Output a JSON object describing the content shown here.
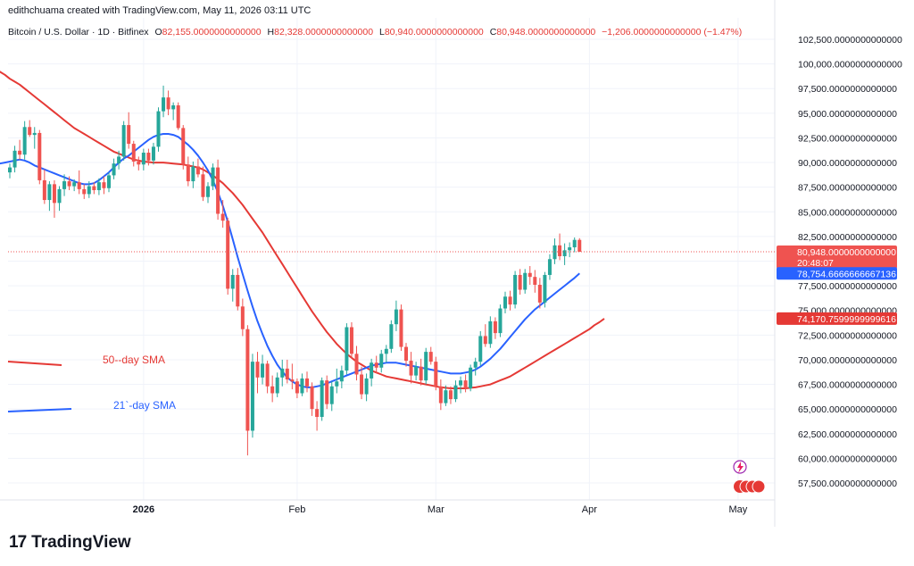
{
  "header": {
    "credit": "edithchuama created with TradingView.com, May 11, 2026 03:11 UTC",
    "symbol": "Bitcoin / U.S. Dollar · 1D · Bitfinex",
    "o_label": "O",
    "o_value": "82,155.0000000000000",
    "h_label": "H",
    "h_value": "82,328.0000000000000",
    "l_label": "L",
    "l_value": "80,940.0000000000000",
    "c_label": "C",
    "c_value": "80,948.0000000000000",
    "change": "−1,206.0000000000000 (−1.47%)"
  },
  "brand": {
    "name": "TradingView"
  },
  "legend": {
    "sma50": "50--day SMA",
    "sma21": "21`-day SMA"
  },
  "price_tags": {
    "last_price": "80,948.0000000000000",
    "countdown": "20:48:07",
    "sma21_value": "78,754.6666666667136",
    "sma50_value": "74,170.7599999999616"
  },
  "colors": {
    "up": "#26a69a",
    "down": "#ef5350",
    "sma21": "#2962ff",
    "sma50": "#e53935"
  },
  "chart_data": {
    "type": "candlestick",
    "y_ticks": [
      "102,500.0000000000000",
      "100,000.0000000000000",
      "97,500.0000000000000",
      "95,000.0000000000000",
      "92,500.0000000000000",
      "90,000.0000000000000",
      "87,500.0000000000000",
      "85,000.0000000000000",
      "82,500.0000000000000",
      "80,000.0000000000000",
      "77,500.0000000000000",
      "75,000.0000000000000",
      "72,500.0000000000000",
      "70,000.0000000000000",
      "67,500.0000000000000",
      "65,000.0000000000000",
      "62,500.0000000000000",
      "60,000.0000000000000",
      "57,500.0000000000000"
    ],
    "y_tick_values": [
      102500,
      100000,
      97500,
      95000,
      92500,
      90000,
      87500,
      85000,
      82500,
      80000,
      77500,
      75000,
      72500,
      70000,
      67500,
      65000,
      62500,
      60000,
      57500
    ],
    "x_labels": [
      {
        "label": "2026",
        "day": 27
      },
      {
        "label": "Feb",
        "day": 58
      },
      {
        "label": "Mar",
        "day": 86
      },
      {
        "label": "Apr",
        "day": 117
      },
      {
        "label": "May",
        "day": 147
      }
    ],
    "candles_ohlc": [
      [
        89000,
        89900,
        88400,
        89500
      ],
      [
        89500,
        91700,
        89000,
        91200
      ],
      [
        91200,
        92300,
        90300,
        90800
      ],
      [
        90800,
        94200,
        90300,
        93600
      ],
      [
        93600,
        94300,
        92600,
        92800
      ],
      [
        92800,
        93600,
        91400,
        93000
      ],
      [
        93000,
        93300,
        87800,
        88200
      ],
      [
        88200,
        89300,
        85800,
        86200
      ],
      [
        86200,
        88100,
        85100,
        87800
      ],
      [
        87800,
        88200,
        84400,
        85900
      ],
      [
        85900,
        87600,
        85100,
        87300
      ],
      [
        87300,
        88800,
        86600,
        88100
      ],
      [
        88100,
        88600,
        87200,
        87600
      ],
      [
        87600,
        88300,
        87100,
        88000
      ],
      [
        88000,
        89200,
        86800,
        87300
      ],
      [
        87300,
        87800,
        86300,
        86800
      ],
      [
        86800,
        88100,
        86400,
        87600
      ],
      [
        87600,
        88000,
        86800,
        87200
      ],
      [
        87200,
        88400,
        86700,
        88000
      ],
      [
        88000,
        88600,
        86800,
        87400
      ],
      [
        87400,
        89000,
        87000,
        88700
      ],
      [
        88700,
        90400,
        88300,
        89900
      ],
      [
        89900,
        91200,
        89300,
        90600
      ],
      [
        90600,
        94200,
        90200,
        93800
      ],
      [
        93800,
        95100,
        91400,
        91900
      ],
      [
        91900,
        92200,
        89600,
        90100
      ],
      [
        90100,
        90600,
        89200,
        89800
      ],
      [
        89800,
        91400,
        89200,
        91000
      ],
      [
        91000,
        91400,
        89700,
        90200
      ],
      [
        90200,
        92000,
        89800,
        91600
      ],
      [
        91600,
        95600,
        91100,
        95200
      ],
      [
        95200,
        97800,
        94600,
        96600
      ],
      [
        96600,
        97300,
        94800,
        95400
      ],
      [
        95400,
        96100,
        94300,
        95800
      ],
      [
        95800,
        96100,
        93300,
        93500
      ],
      [
        93500,
        93800,
        89300,
        89800
      ],
      [
        89800,
        90600,
        87600,
        88100
      ],
      [
        88100,
        90100,
        87400,
        89600
      ],
      [
        89600,
        90400,
        88500,
        88800
      ],
      [
        88800,
        89600,
        86100,
        86500
      ],
      [
        86500,
        88000,
        85900,
        87600
      ],
      [
        87600,
        89900,
        87200,
        89500
      ],
      [
        89500,
        90300,
        84200,
        84800
      ],
      [
        84800,
        86200,
        83400,
        84100
      ],
      [
        84100,
        84400,
        76600,
        77200
      ],
      [
        77200,
        79200,
        75900,
        78600
      ],
      [
        78600,
        79300,
        75000,
        75400
      ],
      [
        75400,
        76200,
        72400,
        73100
      ],
      [
        73100,
        73500,
        60300,
        62800
      ],
      [
        62800,
        70600,
        62100,
        69800
      ],
      [
        69800,
        70800,
        66600,
        68200
      ],
      [
        68200,
        70500,
        67500,
        69600
      ],
      [
        69600,
        69900,
        66600,
        67300
      ],
      [
        67300,
        68400,
        65700,
        66600
      ],
      [
        66600,
        68700,
        66200,
        68200
      ],
      [
        68200,
        70000,
        67300,
        69100
      ],
      [
        69100,
        70000,
        67600,
        68000
      ],
      [
        68000,
        69600,
        67000,
        67800
      ],
      [
        67800,
        68100,
        66100,
        66600
      ],
      [
        66600,
        68600,
        66300,
        68100
      ],
      [
        68100,
        68800,
        66700,
        67300
      ],
      [
        67300,
        67700,
        64300,
        65000
      ],
      [
        65000,
        65800,
        62800,
        64200
      ],
      [
        64200,
        68200,
        63800,
        67900
      ],
      [
        67900,
        68400,
        65000,
        65500
      ],
      [
        65500,
        67800,
        64800,
        67300
      ],
      [
        67300,
        69100,
        66600,
        67800
      ],
      [
        67800,
        69400,
        67100,
        68900
      ],
      [
        68900,
        73700,
        68500,
        73300
      ],
      [
        73300,
        73800,
        70100,
        70600
      ],
      [
        70600,
        71400,
        67900,
        68500
      ],
      [
        68500,
        69300,
        66000,
        66500
      ],
      [
        66500,
        68600,
        65800,
        68100
      ],
      [
        68100,
        70100,
        67300,
        69700
      ],
      [
        69700,
        70400,
        68600,
        69200
      ],
      [
        69200,
        71000,
        68700,
        70600
      ],
      [
        70600,
        71500,
        69700,
        71100
      ],
      [
        71100,
        74000,
        70700,
        73600
      ],
      [
        73600,
        76000,
        72900,
        75100
      ],
      [
        75100,
        75600,
        70900,
        71300
      ],
      [
        71300,
        71700,
        69300,
        69900
      ],
      [
        69900,
        70800,
        67600,
        68400
      ],
      [
        68400,
        69800,
        67900,
        69300
      ],
      [
        69300,
        70100,
        67400,
        67900
      ],
      [
        67900,
        71200,
        67500,
        70800
      ],
      [
        70800,
        71300,
        69500,
        69800
      ],
      [
        69800,
        70300,
        66900,
        67300
      ],
      [
        67300,
        68000,
        64900,
        65600
      ],
      [
        65600,
        67400,
        65300,
        66900
      ],
      [
        66900,
        67300,
        65500,
        66000
      ],
      [
        66000,
        67900,
        65700,
        67400
      ],
      [
        67400,
        68300,
        66600,
        67900
      ],
      [
        67900,
        68500,
        66700,
        67100
      ],
      [
        67100,
        69500,
        66800,
        69200
      ],
      [
        69200,
        70200,
        68400,
        69800
      ],
      [
        69800,
        72900,
        69400,
        72400
      ],
      [
        72400,
        73600,
        71300,
        71600
      ],
      [
        71600,
        74400,
        71200,
        73900
      ],
      [
        73900,
        74300,
        72100,
        72700
      ],
      [
        72700,
        75600,
        72300,
        75200
      ],
      [
        75200,
        76900,
        74700,
        76400
      ],
      [
        76400,
        77000,
        75000,
        75600
      ],
      [
        75600,
        79000,
        75200,
        78600
      ],
      [
        78600,
        79200,
        76600,
        77100
      ],
      [
        77100,
        79200,
        76700,
        78800
      ],
      [
        78800,
        79500,
        77600,
        78400
      ],
      [
        78400,
        79100,
        76800,
        77600
      ],
      [
        77600,
        78300,
        75200,
        75800
      ],
      [
        75800,
        78900,
        75300,
        78600
      ],
      [
        78600,
        80700,
        78100,
        80200
      ],
      [
        80200,
        82300,
        79700,
        81600
      ],
      [
        81600,
        82800,
        80100,
        80500
      ],
      [
        80500,
        81800,
        79600,
        81100
      ],
      [
        81100,
        81900,
        80400,
        81400
      ],
      [
        81400,
        82400,
        80900,
        82155
      ],
      [
        82155,
        82328,
        80940,
        80948
      ]
    ],
    "series": [
      {
        "name": "50--day SMA",
        "color": "#e53935",
        "values": [
          99500,
          99200,
          98900,
          98500,
          98200,
          97900,
          97500,
          97100,
          96700,
          96300,
          95900,
          95500,
          95100,
          94700,
          94300,
          93900,
          93500,
          93200,
          92900,
          92600,
          92300,
          92000,
          91700,
          91400,
          91100,
          90900,
          90700,
          90500,
          90300,
          90200,
          90100,
          90050,
          90000,
          90000,
          90000,
          89950,
          89900,
          89850,
          89800,
          89700,
          89600,
          89500,
          89300,
          89000,
          88700,
          88300,
          87900,
          87400,
          86900,
          86300,
          85700,
          85000,
          84300,
          83600,
          82900,
          82100,
          81300,
          80500,
          79700,
          78900,
          78100,
          77300,
          76500,
          75700,
          74900,
          74200,
          73500,
          72800,
          72200,
          71600,
          71100,
          70600,
          70200,
          69800,
          69500,
          69200,
          68900,
          68700,
          68500,
          68300,
          68200,
          68100,
          68000,
          67900,
          67800,
          67700,
          67600,
          67500,
          67400,
          67300,
          67200,
          67150,
          67100,
          67100,
          67100,
          67100,
          67150,
          67200,
          67300,
          67400,
          67500,
          67700,
          67900,
          68100,
          68300,
          68600,
          68900,
          69200,
          69500,
          69800,
          70100,
          70400,
          70700,
          71000,
          71300,
          71600,
          71900,
          72200,
          72500,
          72800,
          73100,
          73500,
          73800,
          74170
        ]
      },
      {
        "name": "21`-day SMA",
        "color": "#2962ff",
        "values": [
          89800,
          89900,
          90000,
          90100,
          90200,
          90300,
          90200,
          90000,
          89700,
          89500,
          89300,
          89100,
          88900,
          88700,
          88500,
          88300,
          88100,
          87900,
          87800,
          87800,
          87900,
          88200,
          88600,
          89000,
          89500,
          90000,
          90400,
          90700,
          91100,
          91500,
          91900,
          92300,
          92600,
          92800,
          92900,
          92900,
          92800,
          92600,
          92200,
          91800,
          91300,
          90700,
          90000,
          89200,
          88200,
          87000,
          85600,
          84000,
          82200,
          80400,
          78700,
          77000,
          75400,
          73900,
          72600,
          71400,
          70400,
          69500,
          68800,
          68200,
          67800,
          67500,
          67300,
          67200,
          67200,
          67300,
          67400,
          67600,
          67800,
          68000,
          68200,
          68400,
          68600,
          68800,
          69000,
          69200,
          69400,
          69500,
          69600,
          69700,
          69700,
          69700,
          69600,
          69500,
          69400,
          69300,
          69200,
          69100,
          69000,
          68900,
          68800,
          68700,
          68600,
          68600,
          68600,
          68700,
          68800,
          69000,
          69300,
          69700,
          70100,
          70600,
          71100,
          71700,
          72300,
          72900,
          73500,
          74100,
          74600,
          75100,
          75500,
          75900,
          76300,
          76700,
          77100,
          77500,
          77900,
          78300,
          78754
        ]
      }
    ]
  }
}
